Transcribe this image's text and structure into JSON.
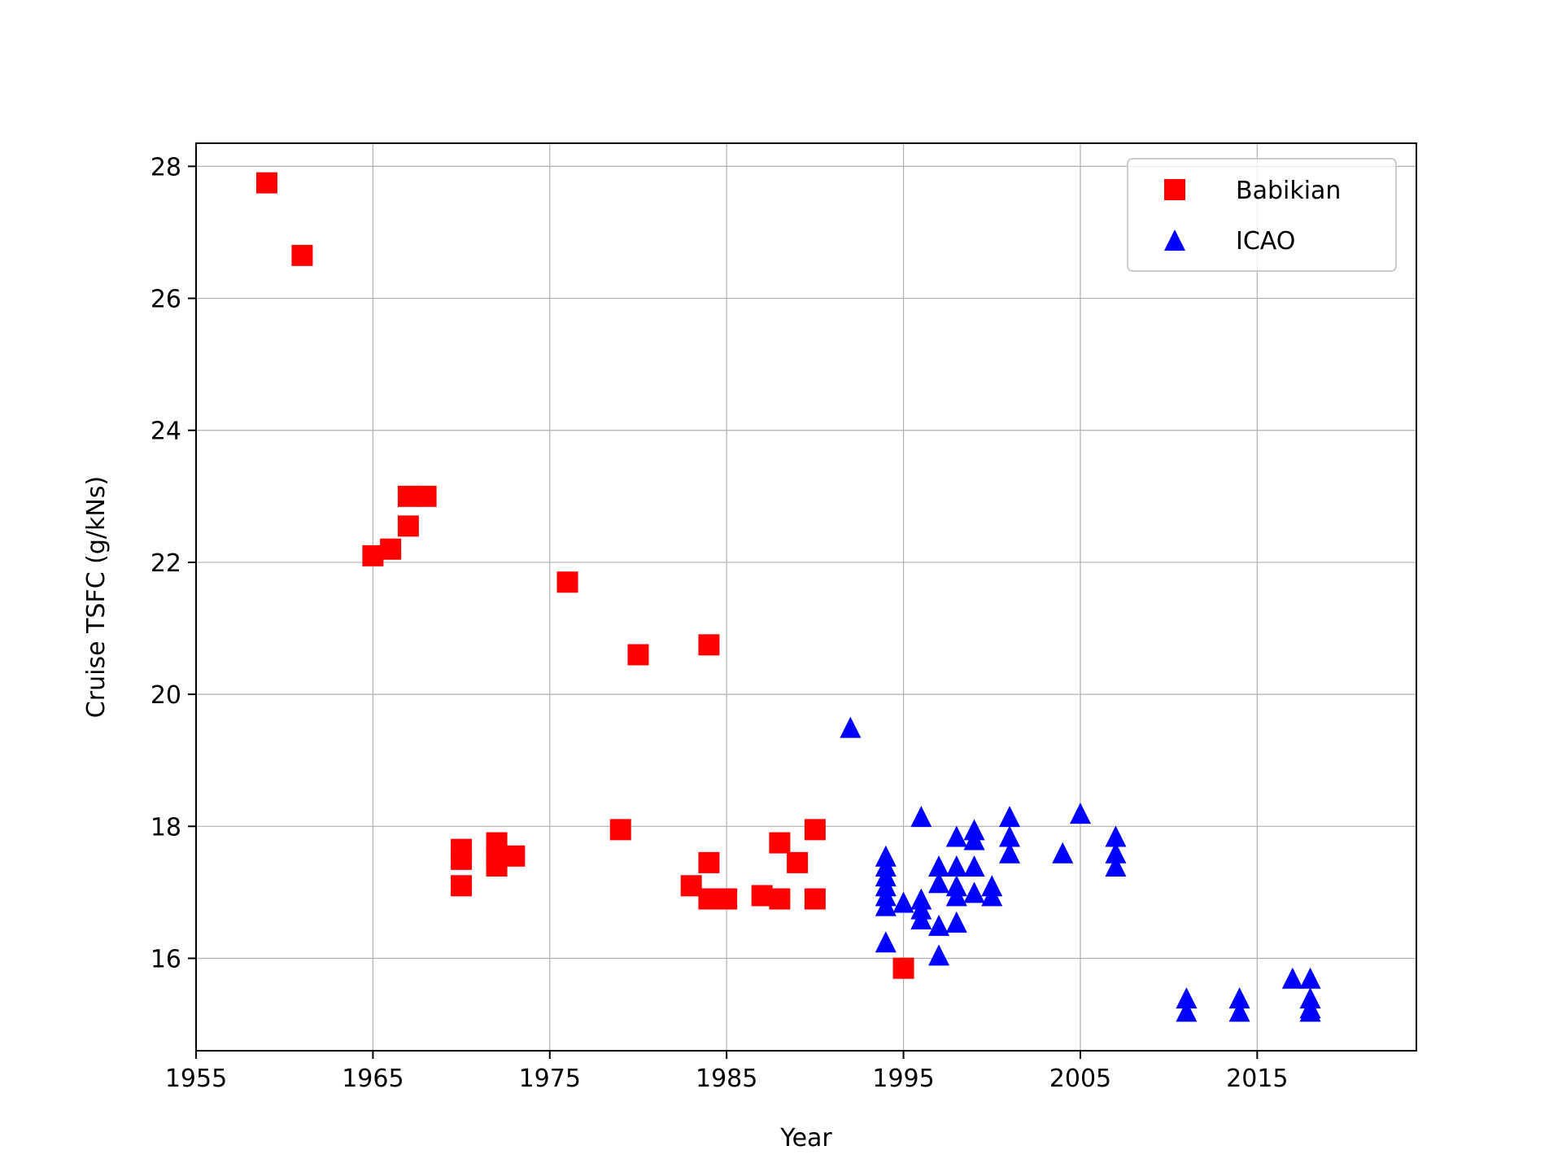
{
  "chart_data": {
    "type": "scatter",
    "title": "",
    "xlabel": "Year",
    "ylabel": "Cruise TSFC (g/kNs)",
    "xlim": [
      1955,
      2024
    ],
    "ylim": [
      14.6,
      28.35
    ],
    "xticks": [
      1955,
      1965,
      1975,
      1985,
      1995,
      2005,
      2015
    ],
    "yticks": [
      16,
      18,
      20,
      22,
      24,
      26,
      28
    ],
    "grid": true,
    "legend_position": "top-right",
    "series": [
      {
        "name": "Babikian",
        "marker": "square",
        "color": "#ff0000",
        "points": [
          [
            1959,
            27.75
          ],
          [
            1961,
            26.65
          ],
          [
            1965,
            22.1
          ],
          [
            1966,
            22.2
          ],
          [
            1967,
            22.55
          ],
          [
            1967,
            23.0
          ],
          [
            1968,
            23.0
          ],
          [
            1970,
            17.65
          ],
          [
            1970,
            17.5
          ],
          [
            1970,
            17.1
          ],
          [
            1972,
            17.75
          ],
          [
            1972,
            17.55
          ],
          [
            1972,
            17.4
          ],
          [
            1973,
            17.55
          ],
          [
            1976,
            21.7
          ],
          [
            1979,
            17.95
          ],
          [
            1980,
            20.6
          ],
          [
            1983,
            17.1
          ],
          [
            1984,
            20.75
          ],
          [
            1984,
            17.45
          ],
          [
            1984,
            16.9
          ],
          [
            1985,
            16.9
          ],
          [
            1987,
            16.95
          ],
          [
            1988,
            17.75
          ],
          [
            1988,
            16.9
          ],
          [
            1989,
            17.45
          ],
          [
            1990,
            17.95
          ],
          [
            1990,
            16.9
          ],
          [
            1995,
            15.85
          ]
        ]
      },
      {
        "name": "ICAO",
        "marker": "triangle",
        "color": "#0000ff",
        "points": [
          [
            1992,
            19.5
          ],
          [
            1994,
            17.55
          ],
          [
            1994,
            17.4
          ],
          [
            1994,
            17.25
          ],
          [
            1994,
            17.1
          ],
          [
            1994,
            16.95
          ],
          [
            1994,
            16.8
          ],
          [
            1994,
            16.25
          ],
          [
            1995,
            16.85
          ],
          [
            1996,
            18.15
          ],
          [
            1996,
            16.9
          ],
          [
            1996,
            16.75
          ],
          [
            1996,
            16.6
          ],
          [
            1997,
            17.4
          ],
          [
            1997,
            17.15
          ],
          [
            1997,
            16.5
          ],
          [
            1997,
            16.05
          ],
          [
            1998,
            17.85
          ],
          [
            1998,
            17.4
          ],
          [
            1998,
            17.1
          ],
          [
            1998,
            16.95
          ],
          [
            1998,
            16.55
          ],
          [
            1999,
            17.95
          ],
          [
            1999,
            17.8
          ],
          [
            1999,
            17.4
          ],
          [
            1999,
            17.0
          ],
          [
            2000,
            17.1
          ],
          [
            2000,
            16.95
          ],
          [
            2001,
            18.15
          ],
          [
            2001,
            17.85
          ],
          [
            2001,
            17.6
          ],
          [
            2004,
            17.6
          ],
          [
            2005,
            18.2
          ],
          [
            2007,
            17.85
          ],
          [
            2007,
            17.6
          ],
          [
            2007,
            17.4
          ],
          [
            2011,
            15.4
          ],
          [
            2011,
            15.2
          ],
          [
            2014,
            15.4
          ],
          [
            2014,
            15.2
          ],
          [
            2017,
            15.7
          ],
          [
            2018,
            15.7
          ],
          [
            2018,
            15.4
          ],
          [
            2018,
            15.25
          ],
          [
            2018,
            15.2
          ]
        ]
      }
    ]
  }
}
